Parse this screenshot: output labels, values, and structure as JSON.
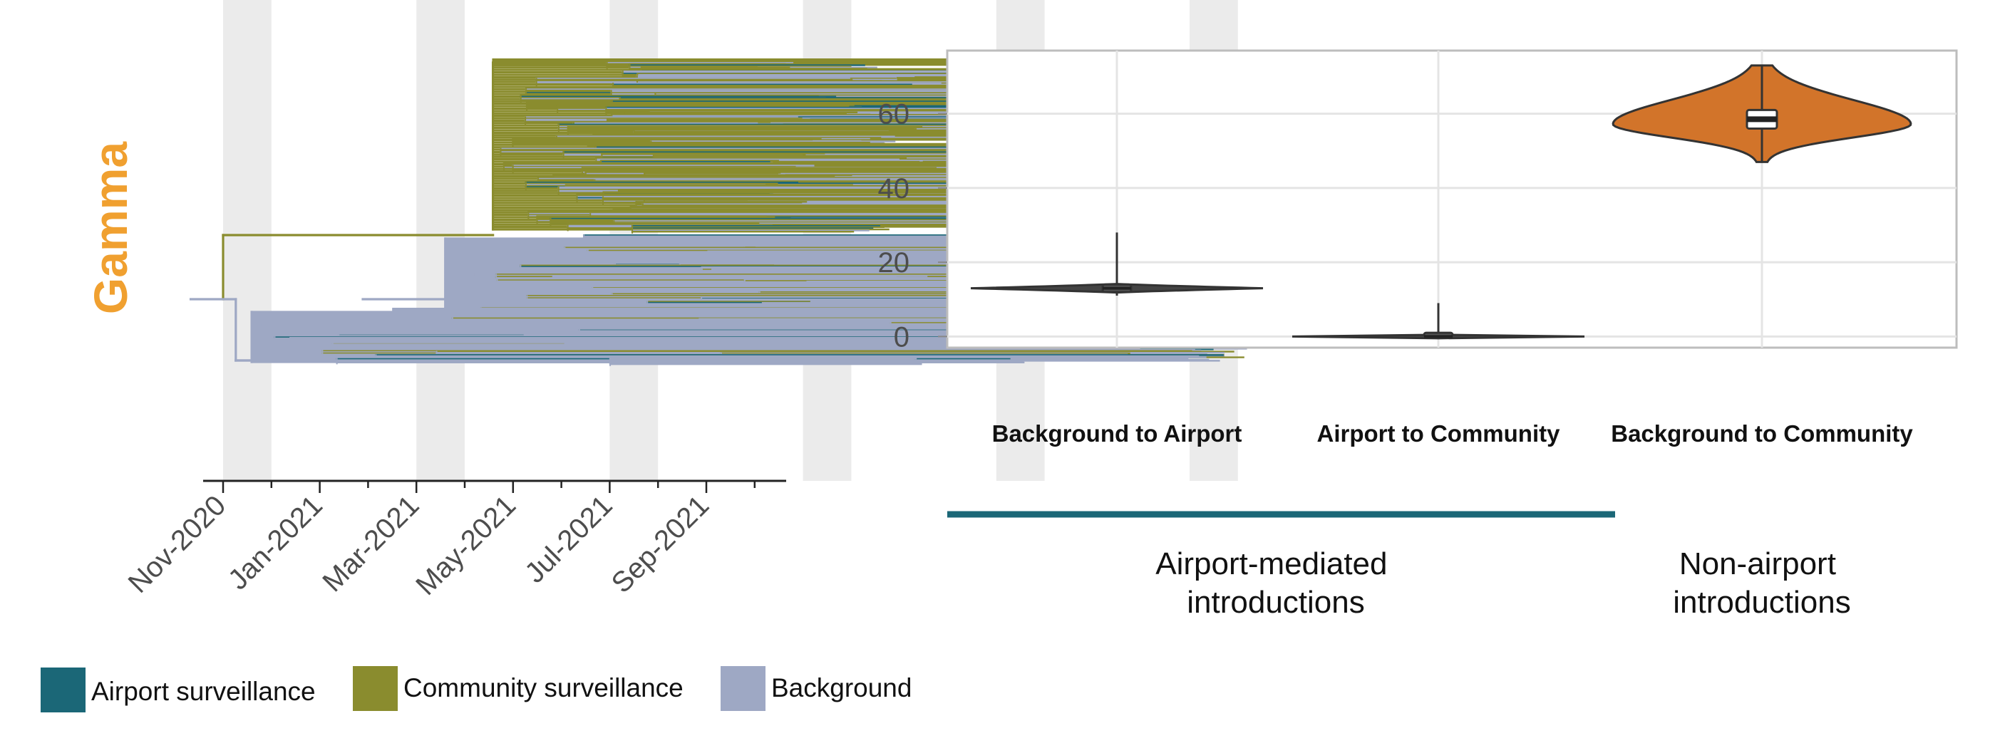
{
  "colors": {
    "airport": "#1b6777",
    "community": "#8a8c2e",
    "background": "#9ea8c4",
    "violin_fill": "#d2742a",
    "title": "#f0a030",
    "band": "#ebebeb",
    "grid": "#e4e4e4",
    "axis_text": "#4d4d4d"
  },
  "chart_data": [
    {
      "type": "line",
      "subtype": "time-scaled phylogenetic tree",
      "title": "Gamma",
      "x_ticks": [
        "Nov-2020",
        "Jan-2021",
        "Mar-2021",
        "May-2021",
        "Jul-2021",
        "Sep-2021"
      ],
      "xlim": [
        "2020-10-20",
        "2021-10-31"
      ],
      "grid": "alternating monthly shaded bands",
      "legend_position": "bottom",
      "legend": [
        {
          "label": "Airport surveillance",
          "color_key": "airport"
        },
        {
          "label": "Community surveillance",
          "color_key": "community"
        },
        {
          "label": "Background",
          "color_key": "background"
        }
      ],
      "clades": [
        {
          "category": "community",
          "ancestor_date": "2020-11-01",
          "root_date": "2021-01-25",
          "tips_start": "2021-03-15",
          "tips_end": "2021-09-15",
          "lineages": 70
        },
        {
          "category": "background",
          "ancestor_date": "2020-12-15",
          "root_date": "2021-01-10",
          "tips_start": "2021-05-01",
          "tips_end": "2021-10-10",
          "lineages": 55
        },
        {
          "category": "background",
          "ancestor_date": "2020-11-05",
          "root_date": "2020-11-10",
          "tips_start": "2021-04-01",
          "tips_end": "2021-10-05",
          "lineages": 30
        }
      ]
    },
    {
      "type": "violin",
      "ylim": [
        -3,
        77
      ],
      "y_ticks": [
        0,
        20,
        40,
        60
      ],
      "grid": true,
      "categories": [
        "Background to Airport",
        "Airport to Community",
        "Background to Community"
      ],
      "groups": [
        {
          "label": "Airport-mediated introductions",
          "span": [
            "Background to Airport",
            "Airport to Community"
          ],
          "color_key": "airport"
        },
        {
          "label": "Non-airport introductions",
          "span": [
            "Background to Community"
          ],
          "color_key": null
        }
      ],
      "series": [
        {
          "category": "Background to Airport",
          "fill_key": null,
          "min": 11,
          "q1": 12,
          "median": 13,
          "q3": 14,
          "max": 28
        },
        {
          "category": "Airport to Community",
          "fill_key": null,
          "min": 0,
          "q1": 0,
          "median": 0,
          "q3": 1,
          "max": 9
        },
        {
          "category": "Background to Community",
          "fill_key": "violin_fill",
          "min": 47,
          "q1": 56,
          "median": 58.5,
          "q3": 61,
          "max": 73
        }
      ]
    }
  ]
}
